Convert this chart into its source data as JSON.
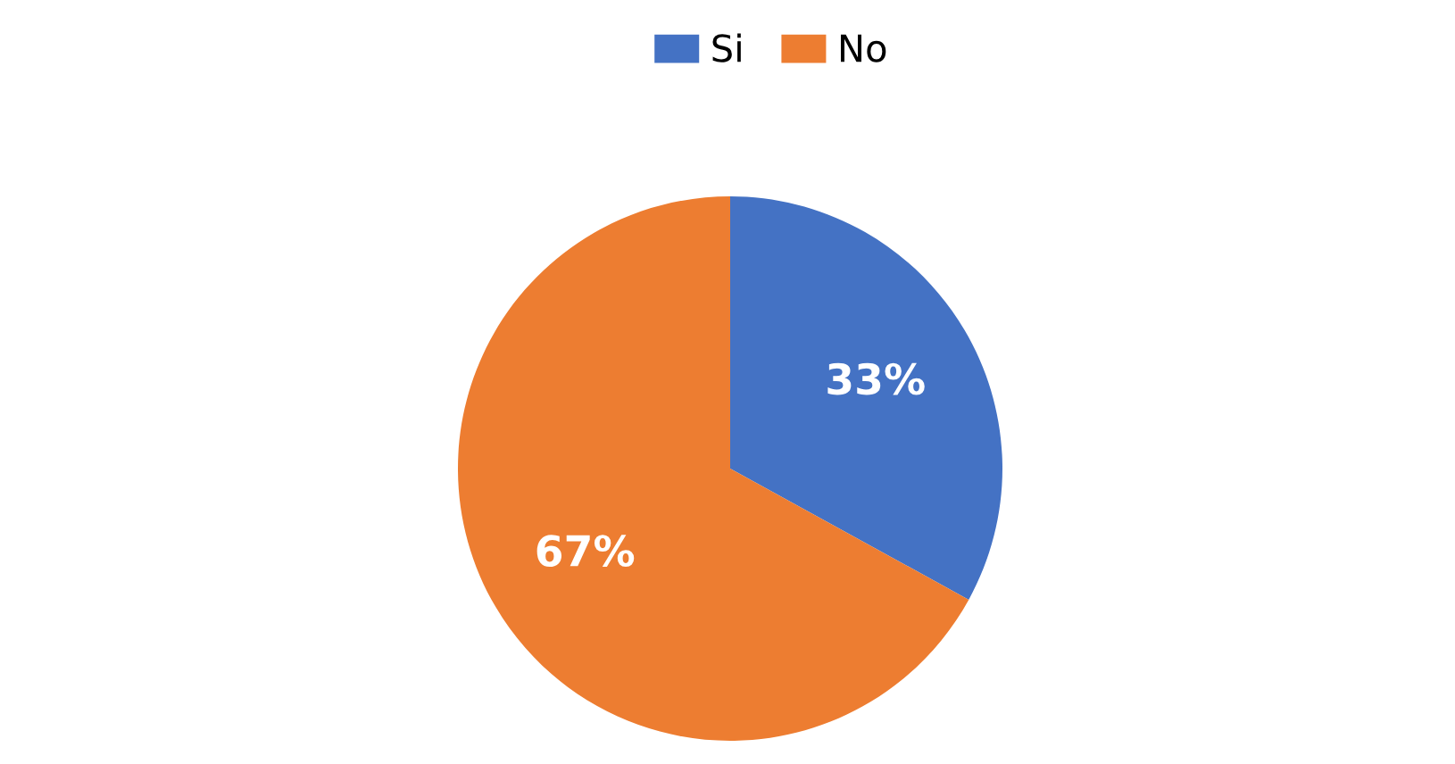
{
  "chart_data": {
    "type": "pie",
    "categories": [
      "Si",
      "No"
    ],
    "values": [
      33,
      67
    ],
    "colors": [
      "#4472c4",
      "#ed7d31"
    ],
    "value_labels": [
      "33%",
      "67%"
    ],
    "legend": "top"
  }
}
